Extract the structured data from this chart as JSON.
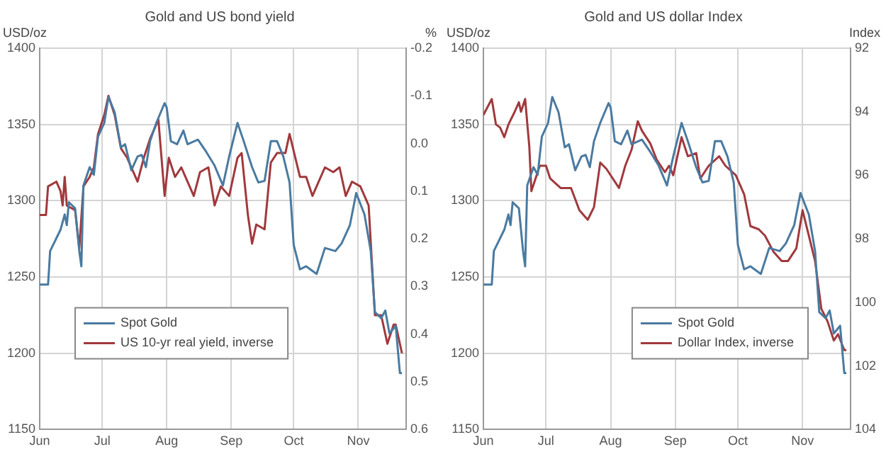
{
  "chart_data": [
    {
      "type": "line",
      "title": "Gold and US bond yield",
      "ylabel": "USD/oz",
      "y2label": "%",
      "xlim": [
        "--06-01",
        "--11-24"
      ],
      "xticks": [
        {
          "value": "--06-01",
          "label": "Jun"
        },
        {
          "value": "--07-01",
          "label": "Jul"
        },
        {
          "value": "--08-01",
          "label": "Aug"
        },
        {
          "value": "--09-01",
          "label": "Sep"
        },
        {
          "value": "--10-01",
          "label": "Oct"
        },
        {
          "value": "--11-01",
          "label": "Nov"
        }
      ],
      "ylim": [
        1150,
        1400
      ],
      "yticks": [
        1150,
        1200,
        1250,
        1300,
        1350,
        1400
      ],
      "y2lim": [
        0.6,
        -0.2
      ],
      "y2ticks": [
        0.6,
        0.5,
        0.4,
        0.3,
        0.2,
        0.1,
        {
          "value": 0,
          "label": "0.0"
        },
        -0.1,
        -0.2
      ],
      "grid": true,
      "legend": "bottom left",
      "series": [
        {
          "name": "Spot Gold",
          "color": "#4a7aa0",
          "x": [
            "--06-01",
            "--06-05",
            "--06-06",
            "--06-11",
            "--06-13",
            "--06-14",
            "--06-15",
            "--06-18",
            "--06-20",
            "--06-21",
            "--06-22",
            "--06-25",
            "--06-27",
            "--06-29",
            "--07-02",
            "--07-04",
            "--07-07",
            "--07-10",
            "--07-12",
            "--07-15",
            "--07-18",
            "--07-20",
            "--07-22",
            "--07-24",
            "--07-27",
            "--07-31",
            "--08-01",
            "--08-03",
            "--08-06",
            "--08-09",
            "--08-11",
            "--08-16",
            "--08-20",
            "--08-24",
            "--08-28",
            "--08-31",
            "--09-04",
            "--09-07",
            "--09-11",
            "--09-14",
            "--09-17",
            "--09-20",
            "--09-23",
            "--09-26",
            "--09-29",
            "--10-01",
            "--10-04",
            "--10-07",
            "--10-12",
            "--10-16",
            "--10-21",
            "--10-24",
            "--10-28",
            "--10-31",
            "--11-04",
            "--11-07",
            "--11-09",
            "--11-12",
            "--11-14",
            "--11-16",
            "--11-19",
            "--11-21",
            "--11-22"
          ],
          "values": [
            1245,
            1245,
            1267,
            1281,
            1291,
            1284,
            1299,
            1295,
            1267,
            1257,
            1310,
            1322,
            1317,
            1342,
            1351,
            1368,
            1358,
            1335,
            1337,
            1320,
            1329,
            1330,
            1322,
            1339,
            1351,
            1364,
            1361,
            1339,
            1337,
            1346,
            1337,
            1340,
            1332,
            1323,
            1310,
            1329,
            1351,
            1339,
            1322,
            1312,
            1313,
            1339,
            1339,
            1329,
            1312,
            1271,
            1255,
            1257,
            1252,
            1269,
            1267,
            1272,
            1284,
            1305,
            1291,
            1267,
            1227,
            1223,
            1228,
            1213,
            1218,
            1187,
            1187
          ]
        },
        {
          "name": "US 10-yr real yield, inverse",
          "color": "#a0393d",
          "axis": "y2",
          "x": [
            "--06-01",
            "--06-04",
            "--06-05",
            "--06-09",
            "--06-11",
            "--06-12",
            "--06-13",
            "--06-14",
            "--06-18",
            "--06-20",
            "--06-22",
            "--06-25",
            "--06-27",
            "--06-29",
            "--07-02",
            "--07-04",
            "--07-07",
            "--07-10",
            "--07-13",
            "--07-18",
            "--07-21",
            "--07-24",
            "--07-28",
            "--07-31",
            "--08-02",
            "--08-05",
            "--08-08",
            "--08-11",
            "--08-14",
            "--08-17",
            "--08-21",
            "--08-24",
            "--08-27",
            "--08-31",
            "--09-04",
            "--09-06",
            "--09-09",
            "--09-11",
            "--09-13",
            "--09-17",
            "--09-20",
            "--09-23",
            "--09-27",
            "--09-29",
            "--10-04",
            "--10-07",
            "--10-10",
            "--10-13",
            "--10-16",
            "--10-20",
            "--10-23",
            "--10-26",
            "--10-29",
            "--11-02",
            "--11-06",
            "--11-09",
            "--11-12",
            "--11-15",
            "--11-18",
            "--11-19",
            "--11-21",
            "--11-22"
          ],
          "values": [
            0.15,
            0.15,
            0.09,
            0.08,
            0.1,
            0.13,
            0.07,
            0.13,
            0.14,
            0.22,
            0.09,
            0.07,
            0.05,
            -0.02,
            -0.06,
            -0.1,
            -0.06,
            0.01,
            0.03,
            0.08,
            0.03,
            -0.01,
            -0.05,
            0.11,
            0.03,
            0.07,
            0.05,
            0.08,
            0.11,
            0.06,
            0.05,
            0.13,
            0.09,
            0.11,
            0.03,
            0.02,
            0.15,
            0.21,
            0.17,
            0.18,
            0.04,
            0.02,
            0.02,
            -0.02,
            0.07,
            0.07,
            0.11,
            0.08,
            0.05,
            0.06,
            0.05,
            0.11,
            0.08,
            0.09,
            0.13,
            0.36,
            0.36,
            0.42,
            0.38,
            0.38,
            0.42,
            0.44
          ]
        }
      ]
    },
    {
      "type": "line",
      "title": "Gold and US dollar Index",
      "ylabel": "USD/oz",
      "y2label": "Index",
      "xlim": [
        "--06-01",
        "--11-24"
      ],
      "xticks": [
        {
          "value": "--06-01",
          "label": "Jun"
        },
        {
          "value": "--07-01",
          "label": "Jul"
        },
        {
          "value": "--08-01",
          "label": "Aug"
        },
        {
          "value": "--09-01",
          "label": "Sep"
        },
        {
          "value": "--10-01",
          "label": "Oct"
        },
        {
          "value": "--11-01",
          "label": "Nov"
        }
      ],
      "ylim": [
        1150,
        1400
      ],
      "yticks": [
        1150,
        1200,
        1250,
        1300,
        1350,
        1400
      ],
      "y2lim": [
        104,
        92
      ],
      "y2ticks": [
        104,
        102,
        100,
        98,
        96,
        94,
        92
      ],
      "grid": true,
      "legend": "bottom right",
      "series": [
        {
          "name": "Spot Gold",
          "color": "#4a7aa0",
          "x": [
            "--06-01",
            "--06-05",
            "--06-06",
            "--06-11",
            "--06-13",
            "--06-14",
            "--06-15",
            "--06-18",
            "--06-20",
            "--06-21",
            "--06-22",
            "--06-25",
            "--06-27",
            "--06-29",
            "--07-02",
            "--07-04",
            "--07-07",
            "--07-10",
            "--07-12",
            "--07-15",
            "--07-18",
            "--07-20",
            "--07-22",
            "--07-24",
            "--07-27",
            "--07-31",
            "--08-01",
            "--08-03",
            "--08-06",
            "--08-09",
            "--08-11",
            "--08-16",
            "--08-20",
            "--08-24",
            "--08-28",
            "--08-31",
            "--09-04",
            "--09-07",
            "--09-11",
            "--09-14",
            "--09-17",
            "--09-20",
            "--09-23",
            "--09-26",
            "--09-29",
            "--10-01",
            "--10-04",
            "--10-07",
            "--10-12",
            "--10-16",
            "--10-21",
            "--10-24",
            "--10-28",
            "--10-31",
            "--11-04",
            "--11-07",
            "--11-09",
            "--11-12",
            "--11-14",
            "--11-16",
            "--11-19",
            "--11-21",
            "--11-22"
          ],
          "values": [
            1245,
            1245,
            1267,
            1281,
            1291,
            1284,
            1299,
            1295,
            1267,
            1257,
            1310,
            1322,
            1317,
            1342,
            1351,
            1368,
            1358,
            1335,
            1337,
            1320,
            1329,
            1330,
            1322,
            1339,
            1351,
            1364,
            1361,
            1339,
            1337,
            1346,
            1337,
            1340,
            1332,
            1323,
            1310,
            1329,
            1351,
            1339,
            1322,
            1312,
            1313,
            1339,
            1339,
            1329,
            1312,
            1271,
            1255,
            1257,
            1252,
            1269,
            1267,
            1272,
            1284,
            1305,
            1291,
            1267,
            1227,
            1223,
            1228,
            1213,
            1218,
            1187,
            1187
          ]
        },
        {
          "name": "Dollar Index, inverse",
          "color": "#a0393d",
          "axis": "y2",
          "x": [
            "--06-01",
            "--06-05",
            "--06-07",
            "--06-09",
            "--06-11",
            "--06-13",
            "--06-16",
            "--06-18",
            "--06-19",
            "--06-21",
            "--06-23",
            "--06-24",
            "--06-28",
            "--07-01",
            "--07-03",
            "--07-08",
            "--07-13",
            "--07-17",
            "--07-21",
            "--07-24",
            "--07-27",
            "--07-30",
            "--08-01",
            "--08-05",
            "--08-08",
            "--08-11",
            "--08-14",
            "--08-16",
            "--08-20",
            "--08-23",
            "--08-27",
            "--08-29",
            "--08-31",
            "--09-04",
            "--09-07",
            "--09-11",
            "--09-13",
            "--09-17",
            "--09-22",
            "--09-25",
            "--09-30",
            "--10-04",
            "--10-07",
            "--10-11",
            "--10-14",
            "--10-18",
            "--10-22",
            "--10-25",
            "--10-29",
            "--11-01",
            "--11-04",
            "--11-07",
            "--11-10",
            "--11-13",
            "--11-16",
            "--11-18",
            "--11-21",
            "--11-22"
          ],
          "values": [
            94.1,
            93.6,
            94.4,
            94.5,
            94.8,
            94.4,
            94.0,
            93.7,
            94.0,
            93.6,
            95.1,
            96.5,
            95.7,
            95.7,
            96.1,
            96.4,
            96.4,
            97.1,
            97.4,
            97.0,
            95.6,
            95.8,
            96.0,
            96.4,
            95.7,
            95.2,
            94.3,
            94.6,
            95.0,
            95.5,
            95.9,
            95.7,
            96.0,
            94.8,
            95.4,
            95.3,
            96.1,
            95.7,
            95.4,
            95.7,
            96.0,
            96.6,
            97.6,
            97.7,
            97.9,
            98.4,
            98.7,
            98.7,
            98.3,
            97.1,
            97.9,
            98.7,
            100.2,
            100.6,
            101.2,
            101.0,
            101.5,
            101.5
          ]
        }
      ]
    }
  ]
}
